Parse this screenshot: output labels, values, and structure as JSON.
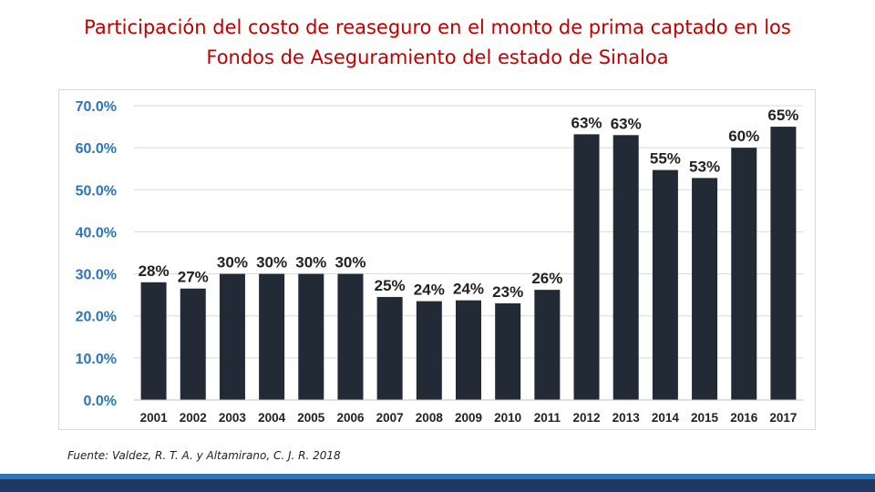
{
  "slide": {
    "title_line1": "Participación del costo de reaseguro en el monto de prima captado en los",
    "title_line2": "Fondos de Aseguramiento del estado de Sinaloa",
    "source": "Fuente: Valdez, R. T. A.  y Altamirano, C. J. R. 2018"
  },
  "colors": {
    "title": "#c00000",
    "bar": "#222a35",
    "axis_label": "#2e75b6",
    "grid": "#d9d9d9",
    "footer_light": "#2e75b6",
    "footer_dark": "#1f3864"
  },
  "chart_data": {
    "type": "bar",
    "title": "",
    "xlabel": "",
    "ylabel": "",
    "ylim": [
      0,
      70
    ],
    "yticks": [
      "0.0%",
      "10.0%",
      "20.0%",
      "30.0%",
      "40.0%",
      "50.0%",
      "60.0%",
      "70.0%"
    ],
    "grid": true,
    "categories": [
      "2001",
      "2002",
      "2003",
      "2004",
      "2005",
      "2006",
      "2007",
      "2008",
      "2009",
      "2010",
      "2011",
      "2012",
      "2013",
      "2014",
      "2015",
      "2016",
      "2017"
    ],
    "values": [
      28,
      26.5,
      30,
      30,
      30,
      30,
      24.5,
      23.5,
      23.7,
      23,
      26.2,
      63.2,
      63,
      54.7,
      52.8,
      60,
      65
    ],
    "data_labels": [
      "28%",
      "27%",
      "30%",
      "30%",
      "30%",
      "30%",
      "25%",
      "24%",
      "24%",
      "23%",
      "26%",
      "63%",
      "63%",
      "55%",
      "53%",
      "60%",
      "65%"
    ]
  }
}
